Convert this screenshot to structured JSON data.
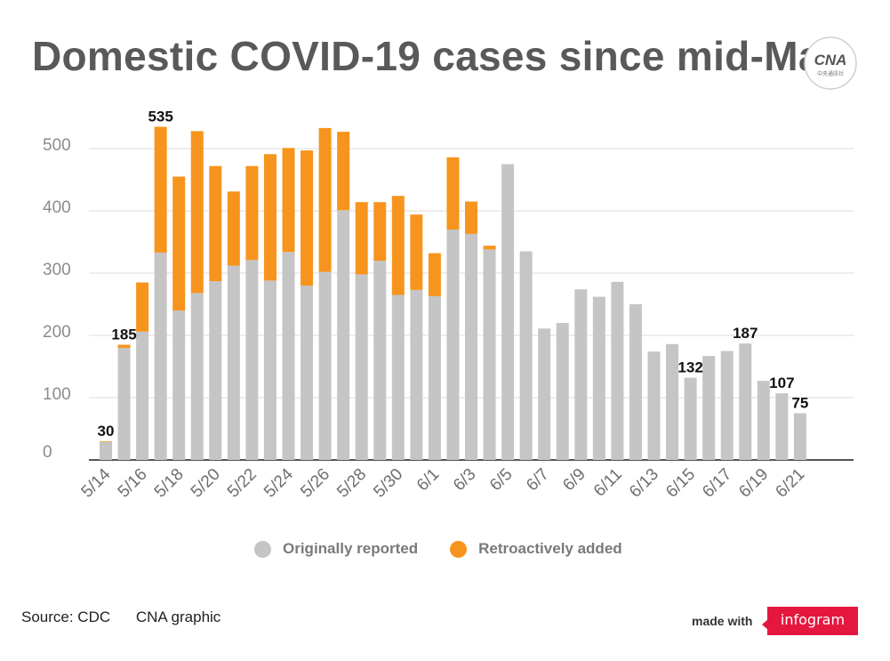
{
  "title": "Domestic COVID-19 cases since mid-May",
  "logo": {
    "text": "CNA",
    "subtext": "中央通訊社"
  },
  "legend": [
    {
      "label": "Originally reported",
      "color": "#c5c5c5"
    },
    {
      "label": "Retroactively added",
      "color": "#f7941d"
    }
  ],
  "footer": {
    "source": "Source: CDC",
    "credit": "CNA graphic",
    "made_with": "made with",
    "brand": "infogram"
  },
  "chart_data": {
    "type": "bar",
    "stacked": true,
    "title": "Domestic COVID-19 cases since mid-May",
    "xlabel": "",
    "ylabel": "",
    "ylim": [
      0,
      550
    ],
    "yticks": [
      0,
      100,
      200,
      300,
      400,
      500
    ],
    "grid": true,
    "legend_position": "bottom",
    "categories": [
      "5/14",
      "5/15",
      "5/16",
      "5/17",
      "5/18",
      "5/19",
      "5/20",
      "5/21",
      "5/22",
      "5/23",
      "5/24",
      "5/25",
      "5/26",
      "5/27",
      "5/28",
      "5/29",
      "5/30",
      "5/31",
      "6/1",
      "6/2",
      "6/3",
      "6/4",
      "6/5",
      "6/6",
      "6/7",
      "6/8",
      "6/9",
      "6/10",
      "6/11",
      "6/12",
      "6/13",
      "6/14",
      "6/15",
      "6/16",
      "6/17",
      "6/18",
      "6/19",
      "6/20",
      "6/21"
    ],
    "xtick_labels": [
      "5/14",
      "5/16",
      "5/18",
      "5/20",
      "5/22",
      "5/24",
      "5/26",
      "5/28",
      "5/30",
      "6/1",
      "6/3",
      "6/5",
      "6/7",
      "6/9",
      "6/11",
      "6/13",
      "6/15",
      "6/17",
      "6/19",
      "6/21"
    ],
    "series": [
      {
        "name": "Originally reported",
        "color": "#c5c5c5",
        "values": [
          29,
          180,
          206,
          333,
          240,
          268,
          287,
          312,
          321,
          288,
          334,
          280,
          302,
          401,
          298,
          320,
          265,
          273,
          263,
          370,
          363,
          338,
          475,
          335,
          211,
          220,
          274,
          262,
          286,
          250,
          174,
          186,
          132,
          167,
          175,
          187,
          127,
          107,
          75
        ]
      },
      {
        "name": "Retroactively added",
        "color": "#f7941d",
        "values": [
          1,
          5,
          79,
          202,
          215,
          260,
          185,
          119,
          151,
          203,
          167,
          217,
          231,
          126,
          116,
          94,
          159,
          121,
          69,
          116,
          52,
          6,
          0,
          0,
          0,
          0,
          0,
          0,
          0,
          0,
          0,
          0,
          0,
          0,
          0,
          0,
          0,
          0,
          0
        ]
      }
    ],
    "data_labels": [
      {
        "category": "5/14",
        "text": "30"
      },
      {
        "category": "5/15",
        "text": "185"
      },
      {
        "category": "5/17",
        "text": "535"
      },
      {
        "category": "6/15",
        "text": "132"
      },
      {
        "category": "6/18",
        "text": "187"
      },
      {
        "category": "6/20",
        "text": "107"
      },
      {
        "category": "6/21",
        "text": "75"
      }
    ]
  }
}
